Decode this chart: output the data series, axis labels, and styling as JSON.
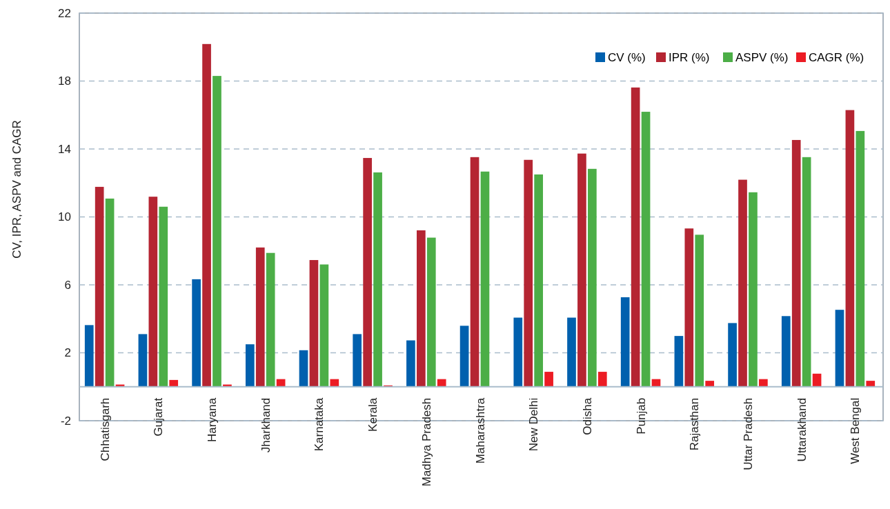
{
  "chart_data": {
    "type": "bar",
    "ylabel": "CV, IPR, ASPV and CAGR",
    "categories": [
      "Chhatisgarh",
      "Gujarat",
      "Haryana",
      "Jharkhand",
      "Karnataka",
      "Kerala",
      "Madhya Pradesh",
      "Maharashtra",
      "New Delhi",
      "Odisha",
      "Punjab",
      "Rajasthan",
      "Uttar Pradesh",
      "Uttarakhand",
      "West Bengal"
    ],
    "series": [
      {
        "name": "CV (%)",
        "color": "#0060ae",
        "values": [
          3.63,
          3.1,
          6.33,
          2.5,
          2.15,
          3.1,
          2.73,
          3.59,
          4.07,
          4.07,
          5.27,
          2.99,
          3.75,
          4.16,
          4.53
        ]
      },
      {
        "name": "IPR (%)",
        "color": "#b52532",
        "values": [
          11.77,
          11.19,
          20.18,
          8.2,
          7.46,
          13.47,
          9.21,
          13.52,
          13.36,
          13.73,
          17.62,
          9.32,
          12.19,
          14.53,
          16.29
        ]
      },
      {
        "name": "ASPV (%)",
        "color": "#4cae47",
        "values": [
          11.08,
          10.6,
          18.3,
          7.88,
          7.2,
          12.62,
          8.78,
          12.67,
          12.5,
          12.83,
          16.19,
          8.95,
          11.45,
          13.52,
          15.06
        ]
      },
      {
        "name": "CAGR (%)",
        "color": "#ec1c24",
        "values": [
          0.13,
          0.4,
          0.13,
          0.45,
          0.45,
          0.08,
          0.45,
          0,
          0.88,
          0.88,
          0.45,
          0.35,
          0.45,
          0.77,
          0.35
        ]
      }
    ],
    "ylim": [
      -2,
      22
    ],
    "yticks": [
      -2,
      2,
      6,
      10,
      14,
      18,
      22
    ],
    "grid": "y",
    "legend": "top right"
  }
}
